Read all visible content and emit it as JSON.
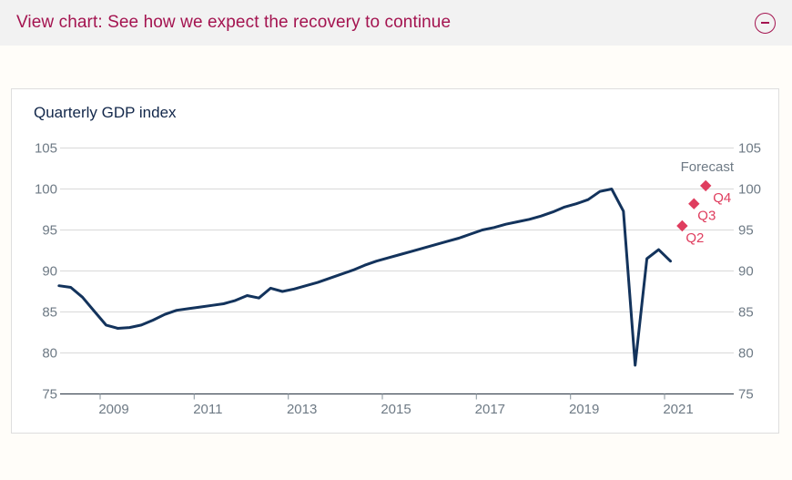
{
  "header": {
    "title": "View chart: See how we expect the recovery to continue",
    "collapse_icon": "circled-minus"
  },
  "chart": {
    "title": "Quarterly GDP index",
    "forecast_label": "Forecast"
  },
  "colors": {
    "header_bg": "#f2f2f2",
    "header_text": "#a41450",
    "panel_border": "#dedede",
    "title_text": "#12274a",
    "gridline": "#d9d9d9",
    "axis_line": "#404b56",
    "tick_mark": "#98a2aa",
    "tick_label": "#6e7a85",
    "gdp_line": "#13335c",
    "forecast": "#df3d5e",
    "forecast_label_gray": "#6e7a85"
  },
  "chart_data": {
    "type": "line",
    "title": "Quarterly GDP index",
    "x_unit": "quarter",
    "x_start": "2008 Q1",
    "x_end": "2021 Q1",
    "series": [
      {
        "name": "GDP index",
        "values": [
          88.2,
          88.0,
          86.8,
          85.1,
          83.4,
          83.0,
          83.1,
          83.4,
          84.0,
          84.7,
          85.2,
          85.4,
          85.6,
          85.8,
          86.0,
          86.4,
          87.0,
          86.7,
          87.9,
          87.5,
          87.8,
          88.2,
          88.6,
          89.1,
          89.6,
          90.1,
          90.7,
          91.2,
          91.6,
          92.0,
          92.4,
          92.8,
          93.2,
          93.6,
          94.0,
          94.5,
          95.0,
          95.3,
          95.7,
          96.0,
          96.3,
          96.7,
          97.2,
          97.8,
          98.2,
          98.7,
          99.7,
          100.0,
          97.3,
          78.5,
          91.5,
          92.6,
          91.2
        ]
      }
    ],
    "forecast_points": [
      {
        "label": "Q2",
        "x": "2021 Q2",
        "value": 95.5
      },
      {
        "label": "Q3",
        "x": "2021 Q3",
        "value": 98.2
      },
      {
        "label": "Q4",
        "x": "2021 Q4",
        "value": 100.4
      }
    ],
    "forecast_annotation": "Forecast",
    "x_tick_labels": [
      "2009",
      "2011",
      "2013",
      "2015",
      "2017",
      "2019",
      "2021"
    ],
    "y_ticks": [
      75,
      80,
      85,
      90,
      95,
      100,
      105
    ],
    "ylim": [
      75,
      105
    ],
    "grid": true,
    "y_axis_labels": "both-sides",
    "legend_position": "none"
  }
}
